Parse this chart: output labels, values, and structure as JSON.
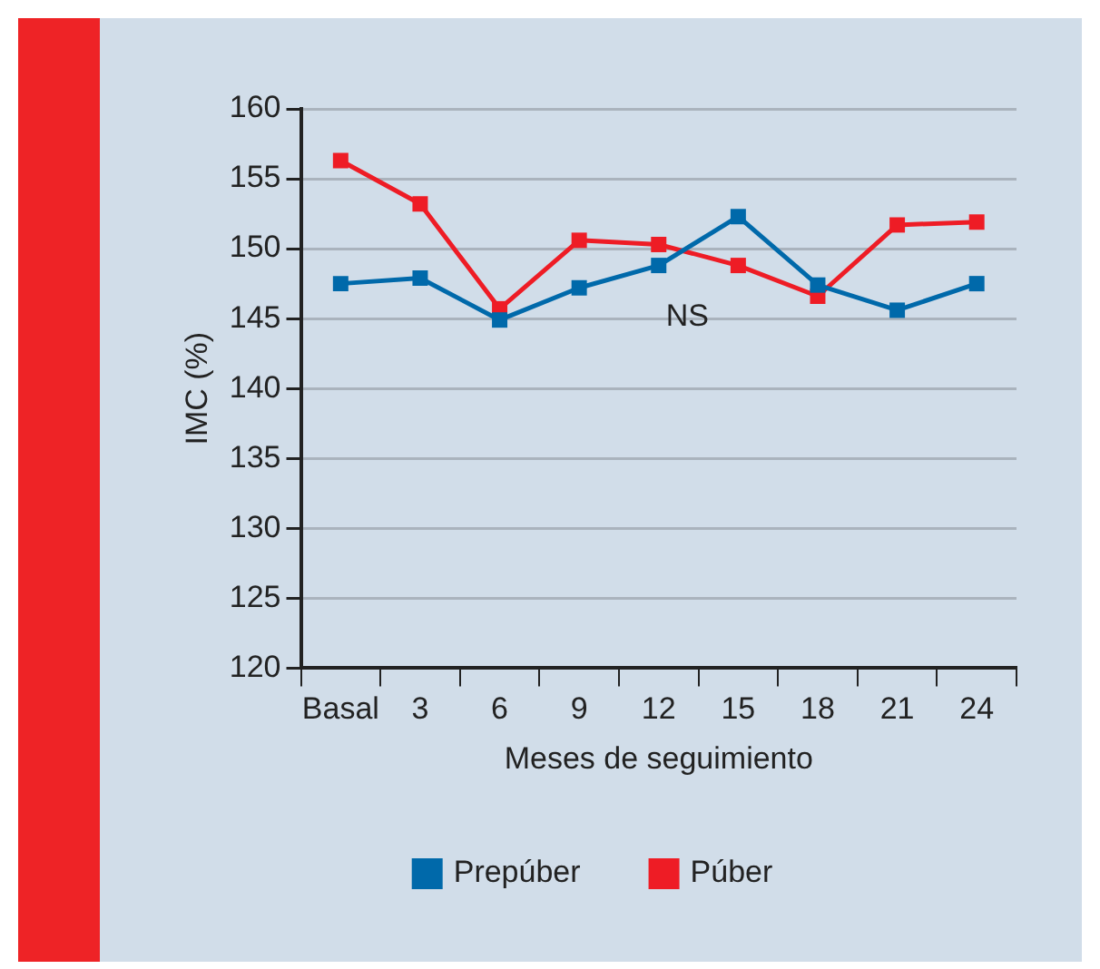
{
  "chart_data": {
    "type": "line",
    "xlabel": "Meses de seguimiento",
    "ylabel": "IMC (%)",
    "categories": [
      "Basal",
      "3",
      "6",
      "9",
      "12",
      "15",
      "18",
      "21",
      "24"
    ],
    "series": [
      {
        "name": "Prepúber",
        "color": "#0069aa",
        "values": [
          147.5,
          147.9,
          144.9,
          147.2,
          148.8,
          152.3,
          147.4,
          145.6,
          147.5
        ]
      },
      {
        "name": "Púber",
        "color": "#ee1c25",
        "values": [
          156.3,
          153.2,
          145.7,
          150.6,
          150.3,
          148.8,
          146.6,
          151.7,
          151.9
        ]
      }
    ],
    "ylim": [
      120,
      160
    ],
    "yticks": [
      120,
      125,
      130,
      135,
      140,
      145,
      150,
      155,
      160
    ],
    "annotations": [
      "NS"
    ],
    "grid": "y",
    "legend": "bottom",
    "marker": "square",
    "line_style": "solid"
  }
}
